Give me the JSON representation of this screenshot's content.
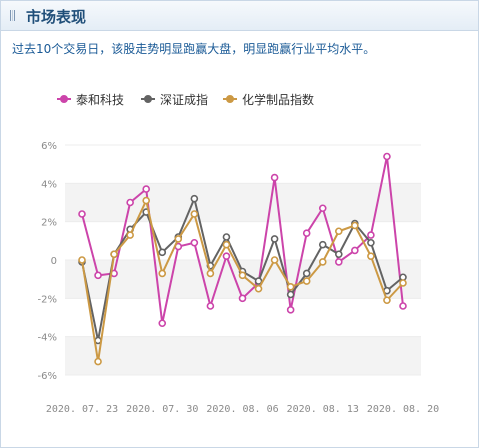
{
  "header": {
    "title": "市场表现"
  },
  "summary": "过去10个交易日，该股走势明显跑赢大盘，明显跑赢行业平均水平。",
  "colors": {
    "series": [
      "#cc44aa",
      "#636363",
      "#cc9944"
    ],
    "grid_band": "#f3f3f3",
    "axis_text": "#8a8a8a",
    "header_title": "#1f4e79",
    "summary_text": "#1a5a96"
  },
  "chart_data": {
    "type": "line",
    "legend_position": "top-left",
    "grid": true,
    "x_ticks": [
      "2020. 07. 23",
      "2020. 07. 30",
      "2020. 08. 06",
      "2020. 08. 13",
      "2020. 08. 20"
    ],
    "y_ticks": [
      "6%",
      "4%",
      "2%",
      "0",
      "-2%",
      "-4%",
      "-6%"
    ],
    "ylim": [
      -6,
      6
    ],
    "unit": "%",
    "series": [
      {
        "name": "泰和科技",
        "values": [
          2.4,
          -0.8,
          -0.7,
          3.0,
          3.7,
          -3.3,
          0.7,
          0.9,
          -2.4,
          0.2,
          -2.0,
          -1.2,
          4.3,
          -2.6,
          1.4,
          2.7,
          -0.1,
          0.5,
          1.3,
          5.4,
          -2.4
        ]
      },
      {
        "name": "深证成指",
        "values": [
          -0.1,
          -4.2,
          0.3,
          1.6,
          2.5,
          0.4,
          1.2,
          3.2,
          -0.3,
          1.2,
          -0.6,
          -1.1,
          1.1,
          -1.8,
          -0.7,
          0.8,
          0.3,
          1.9,
          0.9,
          -1.6,
          -0.9
        ]
      },
      {
        "name": "化学制品指数",
        "values": [
          0.0,
          -5.3,
          0.3,
          1.3,
          3.1,
          -0.7,
          1.1,
          2.4,
          -0.7,
          0.8,
          -0.8,
          -1.5,
          0.0,
          -1.4,
          -1.1,
          -0.1,
          1.5,
          1.8,
          0.2,
          -2.1,
          -1.2
        ]
      }
    ]
  }
}
